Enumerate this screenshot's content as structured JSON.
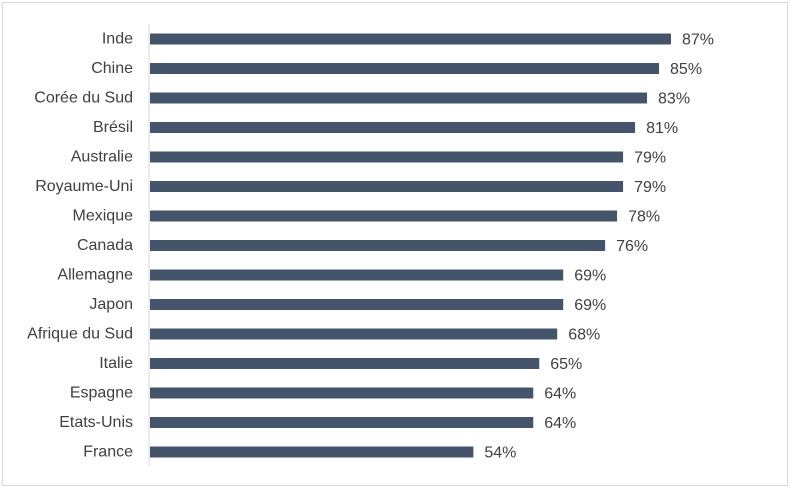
{
  "chart_data": {
    "type": "bar",
    "orientation": "horizontal",
    "categories": [
      "Inde",
      "Chine",
      "Corée du Sud",
      "Brésil",
      "Australie",
      "Royaume-Uni",
      "Mexique",
      "Canada",
      "Allemagne",
      "Japon",
      "Afrique du Sud",
      "Italie",
      "Espagne",
      "Etats-Unis",
      "France"
    ],
    "values": [
      87,
      85,
      83,
      81,
      79,
      79,
      78,
      76,
      69,
      69,
      68,
      65,
      64,
      64,
      54
    ],
    "value_labels": [
      "87%",
      "85%",
      "83%",
      "81%",
      "79%",
      "79%",
      "78%",
      "76%",
      "69%",
      "69%",
      "68%",
      "65%",
      "64%",
      "64%",
      "54%"
    ],
    "title": "",
    "xlabel": "",
    "ylabel": "",
    "grid": false,
    "legend": "none",
    "bar_color": "#44546a"
  }
}
